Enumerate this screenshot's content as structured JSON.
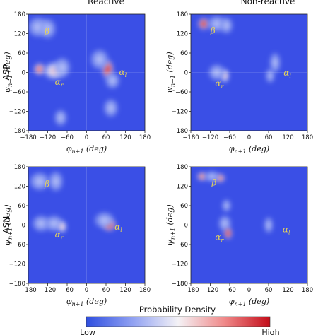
{
  "figure": {
    "row_labels": [
      "ASP",
      "ASN"
    ],
    "column_titles": [
      "Reactive",
      "Non-reactive"
    ]
  },
  "colorbar": {
    "title": "Probability Density",
    "low_label": "Low",
    "high_label": "High",
    "colors": [
      "#2f4fe0",
      "#8fa0f2",
      "#f4f2f6",
      "#f08a8a",
      "#c40d1a"
    ]
  },
  "chart_data": [
    {
      "type": "heatmap",
      "row": "ASP",
      "column": "Reactive",
      "xlabel": "φ_{n+1} (deg)",
      "ylabel": "ψ_{n+1} (deg)",
      "xlim": [
        -180,
        180
      ],
      "ylim": [
        -180,
        180
      ],
      "xticks": [
        -180,
        -120,
        -60,
        0,
        60,
        120,
        180
      ],
      "yticks": [
        -180,
        -120,
        -60,
        0,
        60,
        120,
        180
      ],
      "background": "#3a4fe6",
      "peaks": [
        {
          "phi": -150,
          "psi": 140,
          "density": 0.25,
          "sx": 22,
          "sy": 22
        },
        {
          "phi": -120,
          "psi": 135,
          "density": 0.18,
          "sx": 18,
          "sy": 22
        },
        {
          "phi": -145,
          "psi": 10,
          "density": 0.6,
          "sx": 14,
          "sy": 14
        },
        {
          "phi": -100,
          "psi": 5,
          "density": 0.3,
          "sx": 24,
          "sy": 20
        },
        {
          "phi": -75,
          "psi": 15,
          "density": 0.15,
          "sx": 18,
          "sy": 22
        },
        {
          "phi": 65,
          "psi": 10,
          "density": 1.0,
          "sx": 14,
          "sy": 22
        },
        {
          "phi": 40,
          "psi": 40,
          "density": 0.18,
          "sx": 20,
          "sy": 22
        },
        {
          "phi": 80,
          "psi": -25,
          "density": 0.18,
          "sx": 16,
          "sy": 18
        },
        {
          "phi": 75,
          "psi": -110,
          "density": 0.12,
          "sx": 16,
          "sy": 20
        },
        {
          "phi": -80,
          "psi": -140,
          "density": 0.08,
          "sx": 14,
          "sy": 18
        }
      ],
      "annotations": [
        {
          "text": "β",
          "phi": -122,
          "psi": 118
        },
        {
          "text": "α_r",
          "phi": -85,
          "psi": -38
        },
        {
          "text": "α_l",
          "phi": 112,
          "psi": -8
        }
      ]
    },
    {
      "type": "heatmap",
      "row": "ASP",
      "column": "Non-reactive",
      "xlabel": "φ_{n+1} (deg)",
      "ylabel": "ψ_{n+1} (deg)",
      "xlim": [
        -180,
        180
      ],
      "ylim": [
        -180,
        180
      ],
      "xticks": [
        -180,
        -120,
        -60,
        0,
        60,
        120,
        180
      ],
      "yticks": [
        -180,
        -120,
        -60,
        0,
        60,
        120,
        180
      ],
      "background": "#3a4fe6",
      "peaks": [
        {
          "phi": -140,
          "psi": 150,
          "density": 0.85,
          "sx": 14,
          "sy": 14
        },
        {
          "phi": -100,
          "psi": 150,
          "density": 0.2,
          "sx": 20,
          "sy": 18
        },
        {
          "phi": -70,
          "psi": 145,
          "density": 0.1,
          "sx": 14,
          "sy": 18
        },
        {
          "phi": -75,
          "psi": -10,
          "density": 0.4,
          "sx": 10,
          "sy": 16
        },
        {
          "phi": -100,
          "psi": 0,
          "density": 0.1,
          "sx": 18,
          "sy": 18
        },
        {
          "phi": 80,
          "psi": 30,
          "density": 0.12,
          "sx": 12,
          "sy": 22
        },
        {
          "phi": 65,
          "psi": -10,
          "density": 0.1,
          "sx": 10,
          "sy": 16
        }
      ],
      "annotations": [
        {
          "text": "β",
          "phi": -112,
          "psi": 120
        },
        {
          "text": "α_r",
          "phi": -92,
          "psi": -42
        },
        {
          "text": "α_l",
          "phi": 118,
          "psi": -10
        }
      ]
    },
    {
      "type": "heatmap",
      "row": "ASN",
      "column": "Reactive",
      "xlabel": "φ_{n+1} (deg)",
      "ylabel": "ψ_{n+1} (deg)",
      "xlim": [
        -180,
        180
      ],
      "ylim": [
        -180,
        180
      ],
      "xticks": [
        -180,
        -120,
        -60,
        0,
        60,
        120,
        180
      ],
      "yticks": [
        -180,
        -120,
        -60,
        0,
        60,
        120,
        180
      ],
      "background": "#3a4fe6",
      "peaks": [
        {
          "phi": -145,
          "psi": 135,
          "density": 0.18,
          "sx": 22,
          "sy": 20
        },
        {
          "phi": -95,
          "psi": 135,
          "density": 0.12,
          "sx": 16,
          "sy": 22
        },
        {
          "phi": -140,
          "psi": 5,
          "density": 0.2,
          "sx": 20,
          "sy": 18
        },
        {
          "phi": -100,
          "psi": 5,
          "density": 0.18,
          "sx": 20,
          "sy": 18
        },
        {
          "phi": -75,
          "psi": -5,
          "density": 0.45,
          "sx": 10,
          "sy": 14
        },
        {
          "phi": 70,
          "psi": 0,
          "density": 1.0,
          "sx": 16,
          "sy": 14
        },
        {
          "phi": 55,
          "psi": 15,
          "density": 0.25,
          "sx": 22,
          "sy": 18
        }
      ],
      "annotations": [
        {
          "text": "β",
          "phi": -122,
          "psi": 118
        },
        {
          "text": "α_r",
          "phi": -85,
          "psi": -38
        },
        {
          "text": "α_l",
          "phi": 98,
          "psi": -14
        }
      ]
    },
    {
      "type": "heatmap",
      "row": "ASN",
      "column": "Non-reactive",
      "xlabel": "φ_{n+1} (deg)",
      "ylabel": "ψ_{n+1} (deg)",
      "xlim": [
        -180,
        180
      ],
      "ylim": [
        -180,
        180
      ],
      "xticks": [
        -180,
        -120,
        -60,
        0,
        60,
        120,
        180
      ],
      "yticks": [
        -180,
        -120,
        -60,
        0,
        60,
        120,
        180
      ],
      "background": "#3a4fe6",
      "peaks": [
        {
          "phi": -145,
          "psi": 150,
          "density": 0.6,
          "sx": 12,
          "sy": 10
        },
        {
          "phi": -90,
          "psi": 145,
          "density": 0.55,
          "sx": 12,
          "sy": 10
        },
        {
          "phi": -115,
          "psi": 150,
          "density": 0.25,
          "sx": 16,
          "sy": 12
        },
        {
          "phi": -70,
          "psi": 60,
          "density": 0.12,
          "sx": 10,
          "sy": 14
        },
        {
          "phi": -75,
          "psi": 5,
          "density": 0.12,
          "sx": 14,
          "sy": 18
        },
        {
          "phi": -65,
          "psi": -25,
          "density": 1.0,
          "sx": 10,
          "sy": 14
        },
        {
          "phi": 60,
          "psi": 0,
          "density": 0.1,
          "sx": 10,
          "sy": 18
        }
      ],
      "annotations": [
        {
          "text": "β",
          "phi": -108,
          "psi": 122
        },
        {
          "text": "α_r",
          "phi": -92,
          "psi": -46
        },
        {
          "text": "α_l",
          "phi": 115,
          "psi": -22
        }
      ]
    }
  ]
}
